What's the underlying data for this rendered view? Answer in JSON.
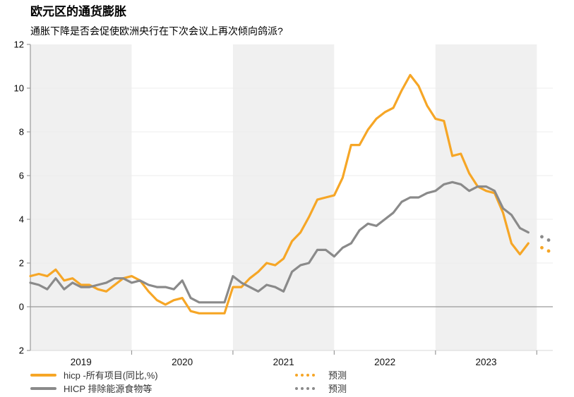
{
  "page": {
    "title": "欧元区的通货膨胀",
    "subtitle": "通胀下降是否会促使欧洲央行在下次会议上再次倾向鸽派?"
  },
  "legend": {
    "items": [
      {
        "label": "hicp -所有项目(同比,%)",
        "color": "#F6A626",
        "style": "solid"
      },
      {
        "label": "HICP 排除能源食物等",
        "color": "#8A8A8A",
        "style": "solid"
      }
    ],
    "forecast_items": [
      {
        "label": "预测",
        "color": "#F6A626",
        "style": "dotted"
      },
      {
        "label": "预测",
        "color": "#8A8A8A",
        "style": "dotted"
      }
    ]
  },
  "chart_data": {
    "type": "line",
    "title": "欧元区的通货膨胀",
    "subtitle": "通胀下降是否会促使欧洲央行在下次会议上再次倾向鸽派?",
    "x_start": "2019-01",
    "x_step": "1 month",
    "x_tick_labels": [
      "2019",
      "2020",
      "2021",
      "2022",
      "2023"
    ],
    "y_tick_labels_top_to_bottom": [
      "12",
      "10",
      "8",
      "6",
      "4",
      "2",
      "0",
      "2"
    ],
    "ylim": [
      -2,
      12
    ],
    "legend_position": "bottom",
    "grid": "faint horizontal gridlines every 2 units, zero line emphasized",
    "background_bands": {
      "color": "#F0F0F0",
      "shaded_years": [
        "2019",
        "2021",
        "2023"
      ]
    },
    "axis_color": "#9A9A9A",
    "series": [
      {
        "name": "hicp -所有项目(同比,%)",
        "color": "#F6A626",
        "style": "solid",
        "monthly_values_2019_01_to_2023_12": [
          1.4,
          1.5,
          1.4,
          1.7,
          1.2,
          1.3,
          1.0,
          1.0,
          0.8,
          0.7,
          1.0,
          1.3,
          1.4,
          1.2,
          0.7,
          0.3,
          0.1,
          0.3,
          0.4,
          -0.2,
          -0.3,
          -0.3,
          -0.3,
          -0.3,
          0.9,
          0.9,
          1.3,
          1.6,
          2.0,
          1.9,
          2.2,
          3.0,
          3.4,
          4.1,
          4.9,
          5.0,
          5.1,
          5.9,
          7.4,
          7.4,
          8.1,
          8.6,
          8.9,
          9.1,
          9.9,
          10.6,
          10.1,
          9.2,
          8.6,
          8.5,
          6.9,
          7.0,
          6.1,
          5.5,
          5.3,
          5.2,
          4.3,
          2.9,
          2.4,
          2.9
        ]
      },
      {
        "name": "HICP 排除能源食物等",
        "color": "#8A8A8A",
        "style": "solid",
        "monthly_values_2019_01_to_2023_12": [
          1.1,
          1.0,
          0.8,
          1.3,
          0.8,
          1.1,
          0.9,
          0.9,
          1.0,
          1.1,
          1.3,
          1.3,
          1.1,
          1.2,
          1.0,
          0.9,
          0.9,
          0.8,
          1.2,
          0.4,
          0.2,
          0.2,
          0.2,
          0.2,
          1.4,
          1.1,
          0.9,
          0.7,
          1.0,
          0.9,
          0.7,
          1.6,
          1.9,
          2.0,
          2.6,
          2.6,
          2.3,
          2.7,
          2.9,
          3.5,
          3.8,
          3.7,
          4.0,
          4.3,
          4.8,
          5.0,
          5.0,
          5.2,
          5.3,
          5.6,
          5.7,
          5.6,
          5.3,
          5.5,
          5.5,
          5.3,
          4.5,
          4.2,
          3.6,
          3.4
        ]
      },
      {
        "name": "预测",
        "color": "#F6A626",
        "style": "dotted",
        "forecast_values": [
          2.7,
          2.55
        ]
      },
      {
        "name": "预测",
        "color": "#8A8A8A",
        "style": "dotted",
        "forecast_values": [
          3.2,
          3.05
        ]
      }
    ]
  }
}
